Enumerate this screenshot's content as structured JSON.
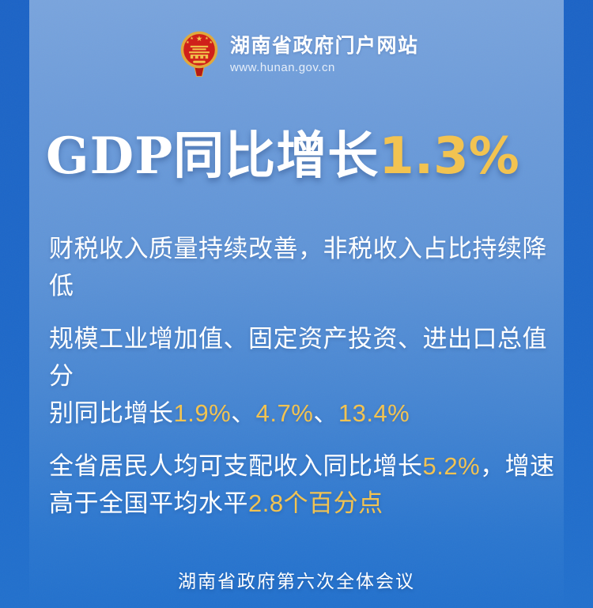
{
  "colors": {
    "background_top": "#79a4dd",
    "background_bottom": "#2170cd",
    "side_band_blue": "#1b63c6",
    "text_white": "#ffffff",
    "accent_gold": "#f2c351",
    "emblem_red": "#cf201a",
    "emblem_gold": "#f0c04a"
  },
  "header": {
    "emblem_icon": "china-national-emblem",
    "site_name": "湖南省政府门户网站",
    "site_url": "www.hunan.gov.cn"
  },
  "headline": {
    "segments": [
      {
        "t": "GDP同比增长",
        "c": "w"
      },
      {
        "t": "1.3%",
        "c": "g"
      }
    ]
  },
  "body": {
    "paragraphs": [
      {
        "lines": [
          [
            {
              "t": "财税收入质量持续改善，非税收入占比持续降低",
              "c": "w"
            }
          ]
        ]
      },
      {
        "lines": [
          [
            {
              "t": "规模工业增加值、固定资产投资、进出口总值分",
              "c": "w"
            }
          ],
          [
            {
              "t": "别同比增长",
              "c": "w"
            },
            {
              "t": "1.9%",
              "c": "g"
            },
            {
              "t": "、",
              "c": "w"
            },
            {
              "t": "4.7%",
              "c": "g"
            },
            {
              "t": "、",
              "c": "w"
            },
            {
              "t": "13.4%",
              "c": "g"
            }
          ]
        ]
      },
      {
        "lines": [
          [
            {
              "t": "全省居民人均可支配收入同比增长",
              "c": "w"
            },
            {
              "t": "5.2%",
              "c": "g"
            },
            {
              "t": "，增速",
              "c": "w"
            }
          ],
          [
            {
              "t": "高于全国平均水平",
              "c": "w"
            },
            {
              "t": "2.8个百分点",
              "c": "g"
            }
          ]
        ]
      }
    ]
  },
  "footer": {
    "caption": "湖南省政府第六次全体会议"
  }
}
